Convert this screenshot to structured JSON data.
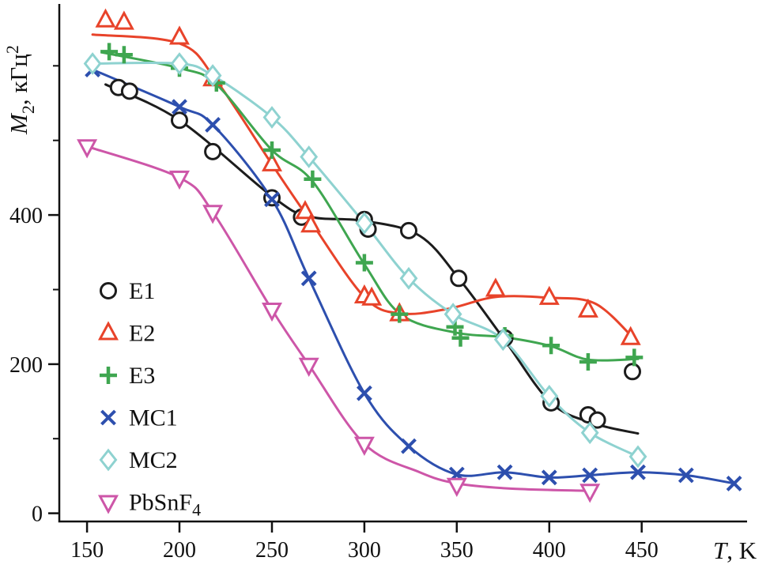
{
  "figure": {
    "background": "#ffffff",
    "axis_color": "#111111",
    "x_axis": {
      "label_main": "T",
      "label_rest": ", K"
    },
    "y_axis": {
      "label_main": "M",
      "label_sub": "2",
      "label_rest": ", кГц",
      "label_sup": "2"
    }
  },
  "chart_data": {
    "type": "scatter",
    "title": "",
    "xlabel": "T, K",
    "ylabel": "M2, кГц^2",
    "xlim": [
      135,
      507
    ],
    "ylim": [
      -11,
      683
    ],
    "x_ticks": [
      150,
      200,
      250,
      300,
      350,
      400,
      450
    ],
    "y_ticks": [
      0,
      200,
      400
    ],
    "y_minor_ticks": [
      100,
      300,
      500,
      600
    ],
    "grid": false,
    "legend_position": "left-middle",
    "series": [
      {
        "name": "E1",
        "name_sub": "",
        "marker": "circle",
        "color": "#1c1c1c",
        "x": [
          167,
          173,
          200,
          218,
          250,
          266,
          300,
          302,
          324,
          351,
          376,
          401,
          421,
          426,
          445
        ],
        "y": [
          571,
          566,
          527,
          485,
          423,
          397,
          394,
          381,
          379,
          315,
          235,
          148,
          132,
          125,
          190
        ],
        "curve_x": [
          160,
          200,
          250,
          270,
          300,
          330,
          352,
          376,
          401,
          425,
          448
        ],
        "curve_y": [
          575,
          527,
          425,
          398,
          392,
          372,
          312,
          232,
          148,
          120,
          107
        ]
      },
      {
        "name": "E2",
        "name_sub": "",
        "marker": "triangle-up",
        "color": "#e8432a",
        "x": [
          160,
          170,
          200,
          218,
          250,
          268,
          271,
          300,
          304,
          319,
          371,
          400,
          421,
          444
        ],
        "y": [
          661,
          658,
          638,
          582,
          468,
          404,
          386,
          291,
          288,
          267,
          300,
          289,
          272,
          235
        ],
        "curve_x": [
          153,
          200,
          220,
          250,
          270,
          300,
          320,
          345,
          371,
          400,
          425,
          447
        ],
        "curve_y": [
          642,
          630,
          580,
          468,
          395,
          290,
          268,
          274,
          290,
          289,
          281,
          231
        ]
      },
      {
        "name": "E3",
        "name_sub": "",
        "marker": "plus",
        "color": "#3fa650",
        "x": [
          162,
          170,
          200,
          220,
          250,
          272,
          300,
          319,
          349,
          352,
          376,
          401,
          421,
          446
        ],
        "y": [
          619,
          615,
          597,
          577,
          487,
          448,
          336,
          267,
          250,
          235,
          238,
          225,
          203,
          209
        ],
        "curve_x": [
          158,
          200,
          220,
          250,
          272,
          300,
          320,
          350,
          376,
          401,
          421,
          448
        ],
        "curve_y": [
          618,
          597,
          575,
          487,
          445,
          334,
          266,
          242,
          236,
          224,
          206,
          207
        ]
      },
      {
        "name": "MC1",
        "name_sub": "",
        "marker": "x",
        "color": "#2d4fae",
        "x": [
          153,
          200,
          218,
          250,
          270,
          300,
          324,
          350,
          376,
          400,
          422,
          448,
          474,
          500
        ],
        "y": [
          595,
          545,
          521,
          421,
          315,
          161,
          90,
          52,
          55,
          48,
          51,
          55,
          51,
          40
        ]
      },
      {
        "name": "MC2",
        "name_sub": "",
        "marker": "diamond",
        "color": "#8ed2d0",
        "x": [
          153,
          200,
          218,
          250,
          270,
          300,
          324,
          348,
          375,
          400,
          422,
          448
        ],
        "y": [
          603,
          603,
          587,
          531,
          478,
          389,
          315,
          267,
          233,
          157,
          108,
          76
        ]
      },
      {
        "name": "PbSnF",
        "name_sub": "4",
        "marker": "triangle-down",
        "color": "#cd56a8",
        "x": [
          150,
          200,
          218,
          250,
          270,
          300,
          350,
          422
        ],
        "y": [
          492,
          450,
          404,
          273,
          199,
          93,
          38,
          30
        ],
        "curve_x": [
          150,
          200,
          218,
          250,
          270,
          300,
          330,
          350,
          380,
          422
        ],
        "curve_y": [
          492,
          450,
          404,
          273,
          199,
          93,
          55,
          40,
          33,
          30
        ]
      }
    ]
  }
}
